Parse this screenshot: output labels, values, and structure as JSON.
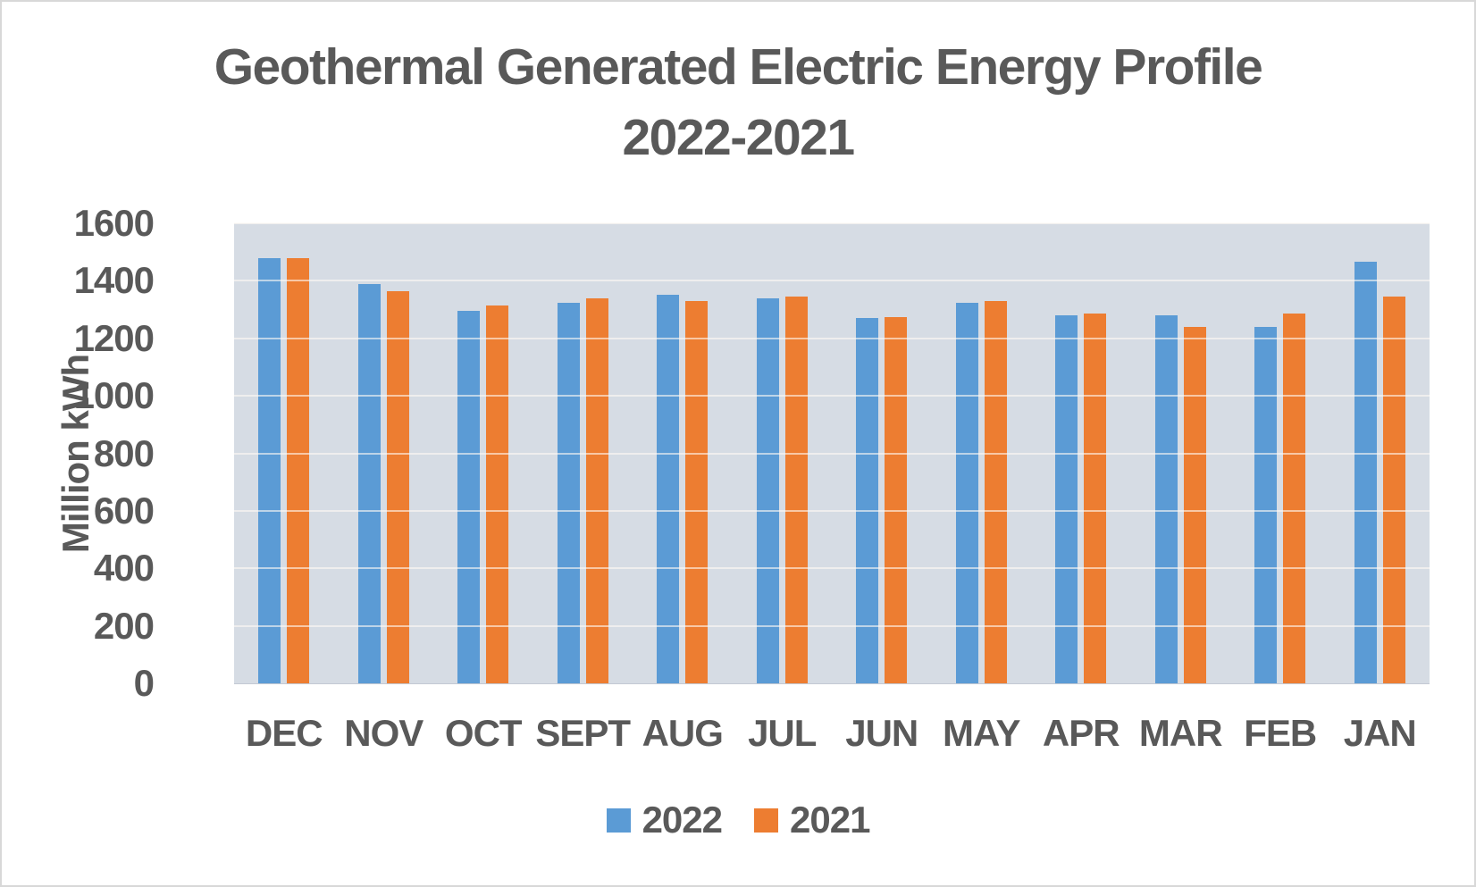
{
  "page": {
    "background": "#FFFFFF",
    "frame_color": "#D8D8D8"
  },
  "chart_data": {
    "type": "bar",
    "title_line1": "Geothermal Generated Electric Energy Profile",
    "title_line2": "2022-2021",
    "ylabel": "Million kWh",
    "xlabel": "",
    "ylim": [
      0,
      1600
    ],
    "yticks": [
      0,
      200,
      400,
      600,
      800,
      1000,
      1200,
      1400,
      1600
    ],
    "grid": true,
    "legend_position": "bottom",
    "plot_bg_color": "#D6DCE4",
    "text_color": "#595959",
    "categories": [
      "DEC",
      "NOV",
      "OCT",
      "SEPT",
      "AUG",
      "JUL",
      "JUN",
      "MAY",
      "APR",
      "MAR",
      "FEB",
      "JAN"
    ],
    "series": [
      {
        "name": "2022",
        "color": "#5B9BD5",
        "values": [
          1480,
          1390,
          1295,
          1325,
          1350,
          1340,
          1270,
          1325,
          1280,
          1280,
          1240,
          1465
        ]
      },
      {
        "name": "2021",
        "color": "#ED7D31",
        "values": [
          1480,
          1365,
          1315,
          1340,
          1330,
          1345,
          1275,
          1330,
          1285,
          1240,
          1285,
          1345
        ]
      }
    ]
  }
}
